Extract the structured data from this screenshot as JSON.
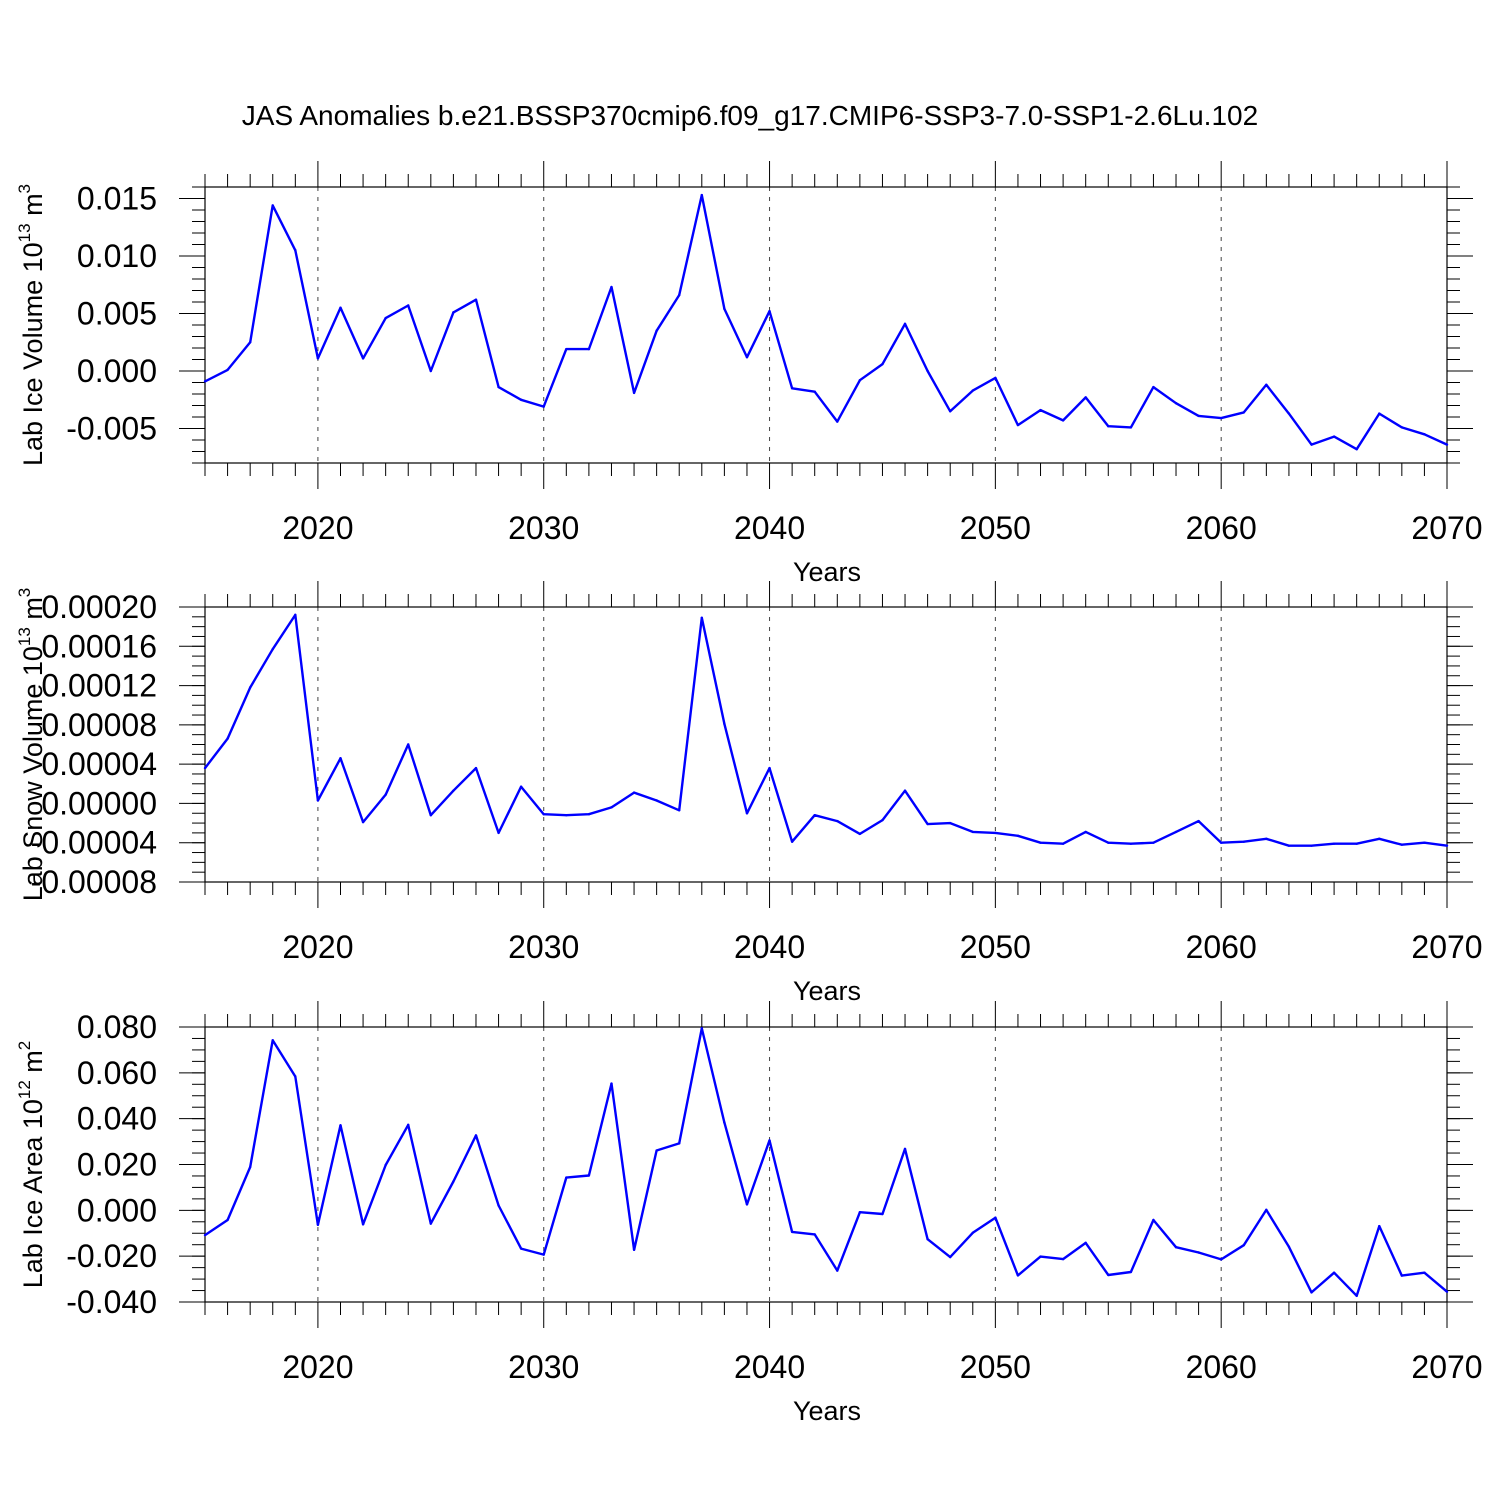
{
  "title": "JAS Anomalies b.e21.BSSP370cmip6.f09_g17.CMIP6-SSP3-7.0-SSP1-2.6Lu.102",
  "line_color": "#0000ff",
  "chart_data": [
    {
      "type": "line",
      "ylabel": "Lab Ice Volume 10",
      "ylabel_exp": "13",
      "ylabel_unit": " m",
      "ylabel_unit_exp": "3",
      "xlabel": "Years",
      "xlim": [
        2015,
        2070
      ],
      "ylim": [
        -0.008,
        0.016
      ],
      "x_ticks": [
        2020,
        2030,
        2040,
        2050,
        2060,
        2070
      ],
      "x_tick_labels": [
        "2020",
        "2030",
        "2040",
        "2050",
        "2060",
        "2070"
      ],
      "y_ticks": [
        -0.005,
        0.0,
        0.005,
        0.01,
        0.015
      ],
      "y_tick_labels": [
        "-0.005",
        "0.000",
        "0.005",
        "0.010",
        "0.015"
      ],
      "y_minor_step": 0.001,
      "grid": "vertical dashed at major x ticks",
      "x": [
        2015,
        2016,
        2017,
        2018,
        2019,
        2020,
        2021,
        2022,
        2023,
        2024,
        2025,
        2026,
        2027,
        2028,
        2029,
        2030,
        2031,
        2032,
        2033,
        2034,
        2035,
        2036,
        2037,
        2038,
        2039,
        2040,
        2041,
        2042,
        2043,
        2044,
        2045,
        2046,
        2047,
        2048,
        2049,
        2050,
        2051,
        2052,
        2053,
        2054,
        2055,
        2056,
        2057,
        2058,
        2059,
        2060,
        2061,
        2062,
        2063,
        2064,
        2065,
        2066,
        2067,
        2068,
        2069,
        2070
      ],
      "values": [
        -0.0009,
        0.0001,
        0.0025,
        0.0144,
        0.0105,
        0.0011,
        0.0055,
        0.0011,
        0.0046,
        0.0057,
        0.0,
        0.0051,
        0.0062,
        -0.0014,
        -0.0025,
        -0.0031,
        0.0019,
        0.0019,
        0.0073,
        -0.0019,
        0.0035,
        0.0066,
        0.0153,
        0.0054,
        0.0012,
        0.0052,
        -0.0015,
        -0.0018,
        -0.0044,
        -0.0008,
        0.0006,
        0.0041,
        0.0,
        -0.0035,
        -0.0017,
        -0.0006,
        -0.0047,
        -0.0034,
        -0.0043,
        -0.0023,
        -0.0048,
        -0.0049,
        -0.0014,
        -0.0028,
        -0.0039,
        -0.0041,
        -0.0036,
        -0.0012,
        -0.0037,
        -0.0064,
        -0.0057,
        -0.0068,
        -0.0037,
        -0.0049,
        -0.0055,
        -0.0064
      ]
    },
    {
      "type": "line",
      "ylabel": "Lab Snow Volume 10",
      "ylabel_exp": "13",
      "ylabel_unit": " m",
      "ylabel_unit_exp": "3",
      "xlabel": "Years",
      "xlim": [
        2015,
        2070
      ],
      "ylim": [
        -8e-05,
        0.0002
      ],
      "x_ticks": [
        2020,
        2030,
        2040,
        2050,
        2060,
        2070
      ],
      "x_tick_labels": [
        "2020",
        "2030",
        "2040",
        "2050",
        "2060",
        "2070"
      ],
      "y_ticks": [
        -8e-05,
        -4e-05,
        0.0,
        4e-05,
        8e-05,
        0.00012,
        0.00016,
        0.0002
      ],
      "y_tick_labels": [
        "-0.00008",
        "-0.00004",
        "0.00000",
        "0.00004",
        "0.00008",
        "0.00012",
        "0.00016",
        "0.00020"
      ],
      "y_minor_step": 1e-05,
      "grid": "vertical dashed at major x ticks",
      "x": [
        2015,
        2016,
        2017,
        2018,
        2019,
        2020,
        2021,
        2022,
        2023,
        2024,
        2025,
        2026,
        2027,
        2028,
        2029,
        2030,
        2031,
        2032,
        2033,
        2034,
        2035,
        2036,
        2037,
        2038,
        2039,
        2040,
        2041,
        2042,
        2043,
        2044,
        2045,
        2046,
        2047,
        2048,
        2049,
        2050,
        2051,
        2052,
        2053,
        2054,
        2055,
        2056,
        2057,
        2058,
        2059,
        2060,
        2061,
        2062,
        2063,
        2064,
        2065,
        2066,
        2067,
        2068,
        2069,
        2070
      ],
      "values": [
        3.6e-05,
        6.6e-05,
        0.000118,
        0.000157,
        0.000192,
        3e-06,
        4.6e-05,
        -1.9e-05,
        9e-06,
        6e-05,
        -1.2e-05,
        1.3e-05,
        3.6e-05,
        -3e-05,
        1.7e-05,
        -1.1e-05,
        -1.2e-05,
        -1.1e-05,
        -4e-06,
        1.1e-05,
        3e-06,
        -7e-06,
        0.000189,
        8.1e-05,
        -1e-05,
        3.6e-05,
        -3.9e-05,
        -1.2e-05,
        -1.8e-05,
        -3.1e-05,
        -1.7e-05,
        1.3e-05,
        -2.1e-05,
        -2e-05,
        -2.9e-05,
        -3e-05,
        -3.3e-05,
        -4e-05,
        -4.1e-05,
        -2.9e-05,
        -4e-05,
        -4.1e-05,
        -4e-05,
        -2.9e-05,
        -1.8e-05,
        -4e-05,
        -3.9e-05,
        -3.6e-05,
        -4.3e-05,
        -4.3e-05,
        -4.1e-05,
        -4.1e-05,
        -3.6e-05,
        -4.2e-05,
        -4e-05,
        -4.3e-05
      ]
    },
    {
      "type": "line",
      "ylabel": "Lab Ice Area 10",
      "ylabel_exp": "12",
      "ylabel_unit": " m",
      "ylabel_unit_exp": "2",
      "xlabel": "Years",
      "xlim": [
        2015,
        2070
      ],
      "ylim": [
        -0.04,
        0.08
      ],
      "x_ticks": [
        2020,
        2030,
        2040,
        2050,
        2060,
        2070
      ],
      "x_tick_labels": [
        "2020",
        "2030",
        "2040",
        "2050",
        "2060",
        "2070"
      ],
      "y_ticks": [
        -0.04,
        -0.02,
        0.0,
        0.02,
        0.04,
        0.06,
        0.08
      ],
      "y_tick_labels": [
        "-0.040",
        "-0.020",
        "0.000",
        "0.020",
        "0.040",
        "0.060",
        "0.080"
      ],
      "y_minor_step": 0.005,
      "grid": "vertical dashed at major x ticks",
      "x": [
        2015,
        2016,
        2017,
        2018,
        2019,
        2020,
        2021,
        2022,
        2023,
        2024,
        2025,
        2026,
        2027,
        2028,
        2029,
        2030,
        2031,
        2032,
        2033,
        2034,
        2035,
        2036,
        2037,
        2038,
        2039,
        2040,
        2041,
        2042,
        2043,
        2044,
        2045,
        2046,
        2047,
        2048,
        2049,
        2050,
        2051,
        2052,
        2053,
        2054,
        2055,
        2056,
        2057,
        2058,
        2059,
        2060,
        2061,
        2062,
        2063,
        2064,
        2065,
        2066,
        2067,
        2068,
        2069,
        2070
      ],
      "values": [
        -0.0108,
        -0.0042,
        0.0189,
        0.0742,
        0.0584,
        -0.0063,
        0.0371,
        -0.0061,
        0.0198,
        0.0373,
        -0.0058,
        0.0126,
        0.0327,
        0.0021,
        -0.0167,
        -0.0193,
        0.0143,
        0.0152,
        0.0553,
        -0.0172,
        0.0261,
        0.0292,
        0.0794,
        0.0383,
        0.0026,
        0.0305,
        -0.0094,
        -0.0105,
        -0.0263,
        -0.0008,
        -0.0016,
        0.0268,
        -0.0126,
        -0.0204,
        -0.0098,
        -0.0032,
        -0.0284,
        -0.0202,
        -0.0213,
        -0.0142,
        -0.0282,
        -0.0269,
        -0.0042,
        -0.0161,
        -0.0184,
        -0.0214,
        -0.0152,
        0.0002,
        -0.0159,
        -0.0358,
        -0.0272,
        -0.0373,
        -0.0069,
        -0.0285,
        -0.0272,
        -0.0355
      ]
    }
  ]
}
